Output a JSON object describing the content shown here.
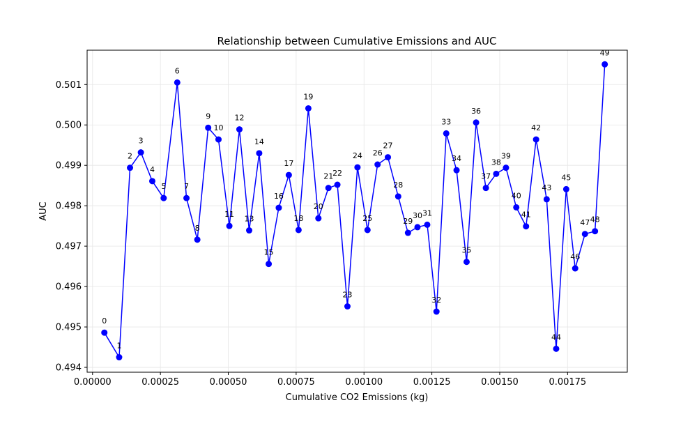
{
  "chart_data": {
    "type": "line",
    "title": "Relationship between Cumulative Emissions and AUC",
    "xlabel": "Cumulative CO2 Emissions (kg)",
    "ylabel": "AUC",
    "xlim": [
      -2e-05,
      0.00197
    ],
    "ylim": [
      0.49388,
      0.50185
    ],
    "x_ticks": [
      0,
      0.00025,
      0.0005,
      0.00075,
      0.001,
      0.00125,
      0.0015,
      0.00175
    ],
    "x_tick_labels": [
      "0.00000",
      "0.00025",
      "0.00050",
      "0.00075",
      "0.00100",
      "0.00125",
      "0.00150",
      "0.00175"
    ],
    "y_ticks": [
      0.494,
      0.495,
      0.496,
      0.497,
      0.498,
      0.499,
      0.5,
      0.501
    ],
    "y_tick_labels": [
      "0.494",
      "0.495",
      "0.496",
      "0.497",
      "0.498",
      "0.499",
      "0.500",
      "0.501"
    ],
    "grid": true,
    "colors": {
      "line": "#0000ff",
      "marker": "#0000ff",
      "grid": "#e6e6e6"
    },
    "point_labels": [
      "0",
      "1",
      "2",
      "3",
      "4",
      "5",
      "6",
      "7",
      "8",
      "9",
      "10",
      "11",
      "12",
      "13",
      "14",
      "15",
      "16",
      "17",
      "18",
      "19",
      "20",
      "21",
      "22",
      "23",
      "24",
      "25",
      "26",
      "27",
      "28",
      "29",
      "30",
      "31",
      "32",
      "33",
      "34",
      "35",
      "36",
      "37",
      "38",
      "39",
      "40",
      "41",
      "42",
      "43",
      "44",
      "45",
      "46",
      "47",
      "48",
      "49"
    ],
    "x": [
      4.35e-05,
      9.8e-05,
      0.000138,
      0.000178,
      0.00022,
      0.000262,
      0.000312,
      0.000346,
      0.000386,
      0.000426,
      0.000464,
      0.000504,
      0.000541,
      0.000577,
      0.000614,
      0.000649,
      0.000686,
      0.000723,
      0.000759,
      0.000795,
      0.000832,
      0.000869,
      0.000902,
      0.000939,
      0.000976,
      0.001013,
      0.00105,
      0.001088,
      0.001126,
      0.001162,
      0.001197,
      0.001233,
      0.001267,
      0.001303,
      0.001341,
      0.001378,
      0.001413,
      0.001449,
      0.001487,
      0.001523,
      0.001561,
      0.001597,
      0.001634,
      0.001673,
      0.001708,
      0.001745,
      0.001778,
      0.001814,
      0.001851,
      0.001887
    ],
    "y": [
      0.49486,
      0.49425,
      0.49894,
      0.49932,
      0.49861,
      0.49819,
      0.50105,
      0.49819,
      0.49716,
      0.49993,
      0.49964,
      0.4975,
      0.49989,
      0.49739,
      0.4993,
      0.49656,
      0.49795,
      0.49876,
      0.4974,
      0.50041,
      0.49769,
      0.49844,
      0.49852,
      0.49551,
      0.49895,
      0.4974,
      0.49902,
      0.4992,
      0.49823,
      0.49733,
      0.49747,
      0.49753,
      0.49538,
      0.49979,
      0.49888,
      0.49661,
      0.50006,
      0.49844,
      0.49879,
      0.49894,
      0.49796,
      0.49749,
      0.49964,
      0.49816,
      0.49446,
      0.49841,
      0.49645,
      0.4973,
      0.49737,
      0.5015
    ]
  }
}
